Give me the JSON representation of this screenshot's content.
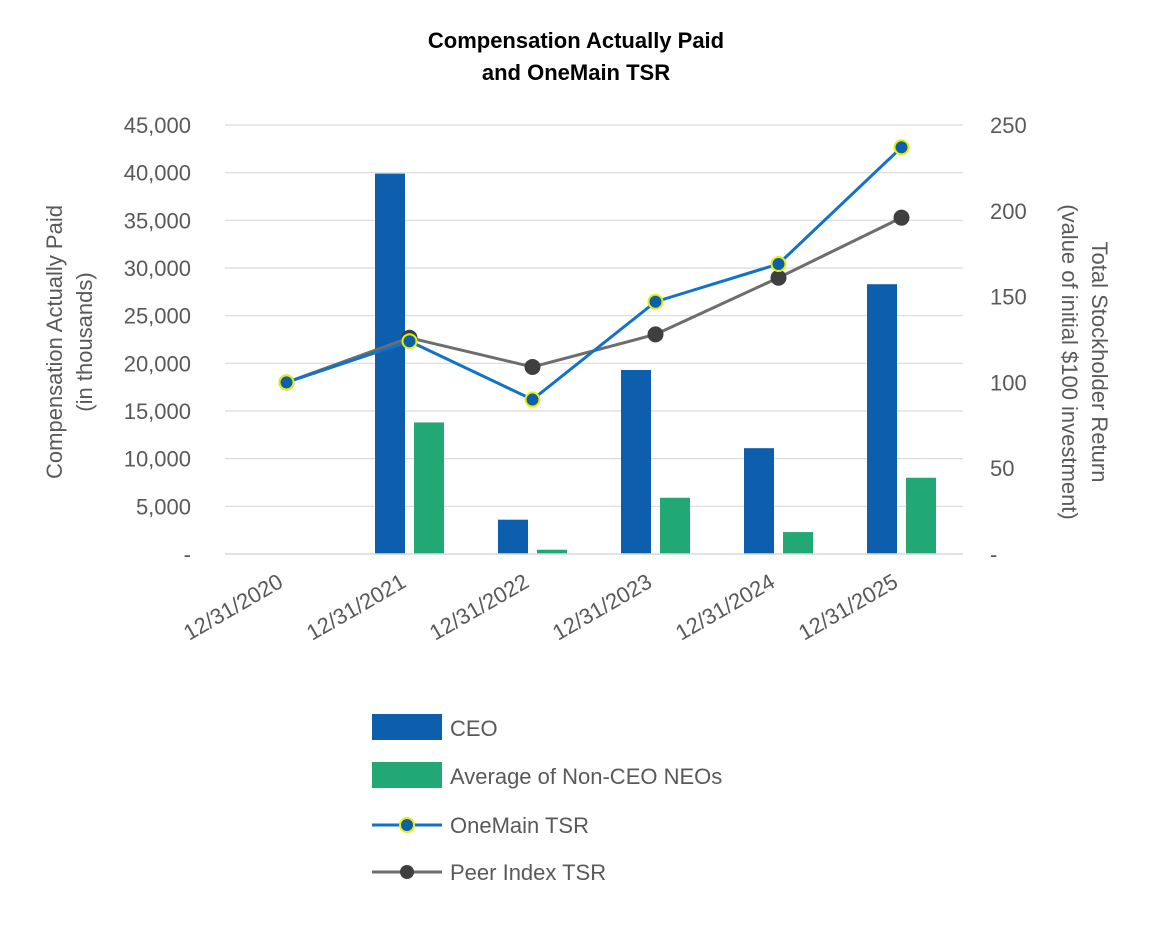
{
  "chart_data": {
    "type": "bar",
    "title_line1": "Compensation Actually Paid",
    "title_line2": "and OneMain TSR",
    "categories": [
      "12/31/2020",
      "12/31/2021",
      "12/31/2022",
      "12/31/2023",
      "12/31/2024",
      "12/31/2025"
    ],
    "ylabel_line1": "Compensation Actually Paid",
    "ylabel_line2": "(in thousands)",
    "y2label_line1": "Total Stockholder Return",
    "y2label_line2": "(value of initial $100 investment)",
    "ylim": [
      0,
      45000
    ],
    "y2lim": [
      0,
      250
    ],
    "yticks": [
      "-",
      "5,000",
      "10,000",
      "15,000",
      "20,000",
      "25,000",
      "30,000",
      "35,000",
      "40,000",
      "45,000"
    ],
    "y2ticks": [
      "-",
      "50",
      "100",
      "150",
      "200",
      "250"
    ],
    "bar_series": [
      {
        "name": "CEO",
        "color": "#0e5eae",
        "values": [
          null,
          39900,
          3600,
          19300,
          11100,
          28300
        ]
      },
      {
        "name": "Average of Non-CEO NEOs",
        "color": "#22a875",
        "values": [
          null,
          13800,
          450,
          5900,
          2300,
          8000
        ]
      }
    ],
    "line_series": [
      {
        "name": "OneMain TSR",
        "color": "#1272c9",
        "marker_color": "#0e5eae",
        "marker_edge": "#e6f000",
        "values": [
          100,
          124,
          90,
          147,
          169,
          237
        ]
      },
      {
        "name": "Peer Index TSR",
        "color": "#6d6d6d",
        "marker_color": "#3f3f3f",
        "marker_edge": "#3f3f3f",
        "values": [
          100,
          126,
          109,
          128,
          161,
          196
        ]
      }
    ],
    "grid": true,
    "legend_position": "bottom"
  }
}
